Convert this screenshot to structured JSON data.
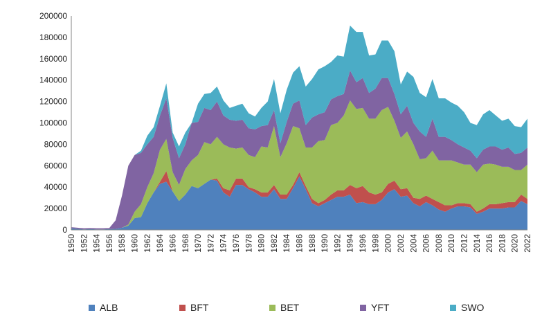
{
  "chart_data": {
    "type": "area",
    "stacked": true,
    "grid": false,
    "legend_placement": "bottom",
    "ylim": [
      0,
      200000
    ],
    "y_ticks": [
      0,
      20000,
      40000,
      60000,
      80000,
      100000,
      120000,
      140000,
      160000,
      180000,
      200000
    ],
    "y_tick_labels": [
      "0",
      "20000",
      "40000",
      "60000",
      "80000",
      "100000",
      "120000",
      "140000",
      "160000",
      "180000",
      "200000"
    ],
    "x_tick_labels": [
      "1950",
      "1952",
      "1954",
      "1956",
      "1958",
      "1960",
      "1962",
      "1964",
      "1966",
      "1968",
      "1970",
      "1972",
      "1974",
      "1976",
      "1978",
      "1980",
      "1982",
      "1984",
      "1986",
      "1988",
      "1990",
      "1992",
      "1994",
      "1996",
      "1998",
      "2000",
      "2002",
      "2004",
      "2006",
      "2008",
      "2010",
      "2012",
      "2014",
      "2016",
      "2018",
      "2020",
      "2022"
    ],
    "x": [
      1950,
      1951,
      1952,
      1953,
      1954,
      1955,
      1956,
      1957,
      1958,
      1959,
      1960,
      1961,
      1962,
      1963,
      1964,
      1965,
      1966,
      1967,
      1968,
      1969,
      1970,
      1971,
      1972,
      1973,
      1974,
      1975,
      1976,
      1977,
      1978,
      1979,
      1980,
      1981,
      1982,
      1983,
      1984,
      1985,
      1986,
      1987,
      1988,
      1989,
      1990,
      1991,
      1992,
      1993,
      1994,
      1995,
      1996,
      1997,
      1998,
      1999,
      2000,
      2001,
      2002,
      2003,
      2004,
      2005,
      2006,
      2007,
      2008,
      2009,
      2010,
      2011,
      2012,
      2013,
      2014,
      2015,
      2016,
      2017,
      2018,
      2019,
      2020,
      2021,
      2022
    ],
    "series": [
      {
        "name": "ALB",
        "color": "#4f81bd",
        "values": [
          1500,
          1000,
          500,
          800,
          500,
          500,
          800,
          1000,
          2000,
          4000,
          11000,
          12000,
          25000,
          35000,
          43000,
          45000,
          36000,
          27000,
          33000,
          41000,
          39000,
          43000,
          47000,
          46000,
          35000,
          31000,
          42000,
          42000,
          38000,
          35000,
          31000,
          31000,
          38000,
          29000,
          29000,
          39000,
          50000,
          38000,
          25000,
          22000,
          25000,
          28000,
          31000,
          31000,
          33000,
          25000,
          26000,
          24000,
          24000,
          28000,
          35000,
          38000,
          31000,
          32000,
          25000,
          22000,
          26000,
          23000,
          19000,
          17000,
          20000,
          22000,
          22000,
          21000,
          15000,
          17000,
          20000,
          20000,
          20000,
          21000,
          21000,
          27000,
          24000
        ]
      },
      {
        "name": "BFT",
        "color": "#c0504d",
        "values": [
          0,
          0,
          0,
          0,
          0,
          0,
          0,
          0,
          0,
          0,
          0,
          0,
          0,
          0,
          2000,
          10000,
          0,
          0,
          0,
          0,
          0,
          0,
          0,
          2000,
          4000,
          6000,
          6000,
          6000,
          2000,
          3000,
          4000,
          4000,
          4000,
          4000,
          4000,
          3000,
          4000,
          3000,
          4000,
          3000,
          3000,
          5000,
          6000,
          6000,
          9000,
          14000,
          15000,
          11000,
          9000,
          7000,
          8000,
          8000,
          7000,
          7000,
          5000,
          7000,
          6000,
          6000,
          7000,
          6000,
          3000,
          3000,
          3000,
          3000,
          2000,
          3000,
          4000,
          4000,
          5000,
          5000,
          5000,
          6000,
          5000
        ]
      },
      {
        "name": "BET",
        "color": "#9bbb59",
        "values": [
          0,
          0,
          0,
          0,
          0,
          0,
          0,
          0,
          0,
          1000,
          6000,
          12000,
          15000,
          18000,
          30000,
          30000,
          18000,
          15000,
          24000,
          24000,
          31000,
          39000,
          33000,
          39000,
          41000,
          40000,
          28000,
          29000,
          30000,
          30000,
          43000,
          42000,
          55000,
          35000,
          48000,
          55000,
          41000,
          36000,
          48000,
          58000,
          56000,
          65000,
          63000,
          70000,
          79000,
          74000,
          73000,
          69000,
          71000,
          77000,
          72000,
          56000,
          48000,
          53000,
          50000,
          37000,
          35000,
          45000,
          39000,
          42000,
          42000,
          38000,
          36000,
          37000,
          37000,
          41000,
          38000,
          37000,
          34000,
          33000,
          30000,
          23000,
          32000
        ]
      },
      {
        "name": "YFT",
        "color": "#8064a2",
        "values": [
          1000,
          1000,
          1000,
          1000,
          1000,
          1000,
          1000,
          8000,
          30000,
          55000,
          53000,
          48000,
          40000,
          34000,
          32000,
          38000,
          32000,
          25000,
          23000,
          35000,
          31000,
          32000,
          32000,
          33000,
          27000,
          26000,
          26000,
          26000,
          25000,
          26000,
          19000,
          21000,
          15000,
          13000,
          20000,
          21000,
          26000,
          21000,
          28000,
          25000,
          26000,
          24000,
          25000,
          20000,
          28000,
          25000,
          28000,
          24000,
          28000,
          30000,
          27000,
          25000,
          22000,
          24000,
          20000,
          26000,
          20000,
          30000,
          22000,
          22000,
          19000,
          17000,
          16000,
          13000,
          13000,
          14000,
          16000,
          17000,
          16000,
          18000,
          15000,
          16000,
          16000
        ]
      },
      {
        "name": "SWO",
        "color": "#4bacc6",
        "values": [
          0,
          0,
          0,
          0,
          0,
          0,
          0,
          0,
          0,
          0,
          0,
          2000,
          8000,
          9000,
          9000,
          14000,
          5000,
          11000,
          11000,
          0,
          17000,
          13000,
          16000,
          14000,
          14000,
          11000,
          14000,
          15000,
          14000,
          12000,
          17000,
          22000,
          29000,
          28000,
          30000,
          29000,
          32000,
          36000,
          36000,
          42000,
          43000,
          35000,
          38000,
          35000,
          42000,
          47000,
          43000,
          35000,
          32000,
          35000,
          35000,
          40000,
          28000,
          32000,
          43000,
          36000,
          37000,
          37000,
          36000,
          36000,
          35000,
          36000,
          33000,
          26000,
          31000,
          33000,
          34000,
          29000,
          27000,
          27000,
          26000,
          24000,
          27000
        ]
      }
    ]
  }
}
